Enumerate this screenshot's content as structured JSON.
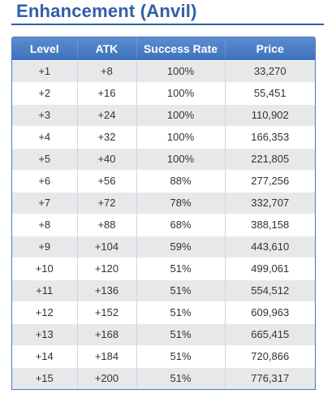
{
  "title": "Enhancement (Anvil)",
  "table": {
    "headers": [
      "Level",
      "ATK",
      "Success Rate",
      "Price"
    ],
    "rows": [
      [
        "+1",
        "+8",
        "100%",
        "33,270"
      ],
      [
        "+2",
        "+16",
        "100%",
        "55,451"
      ],
      [
        "+3",
        "+24",
        "100%",
        "110,902"
      ],
      [
        "+4",
        "+32",
        "100%",
        "166,353"
      ],
      [
        "+5",
        "+40",
        "100%",
        "221,805"
      ],
      [
        "+6",
        "+56",
        "88%",
        "277,256"
      ],
      [
        "+7",
        "+72",
        "78%",
        "332,707"
      ],
      [
        "+8",
        "+88",
        "68%",
        "388,158"
      ],
      [
        "+9",
        "+104",
        "59%",
        "443,610"
      ],
      [
        "+10",
        "+120",
        "51%",
        "499,061"
      ],
      [
        "+11",
        "+136",
        "51%",
        "554,512"
      ],
      [
        "+12",
        "+152",
        "51%",
        "609,963"
      ],
      [
        "+13",
        "+168",
        "51%",
        "665,415"
      ],
      [
        "+14",
        "+184",
        "51%",
        "720,866"
      ],
      [
        "+15",
        "+200",
        "51%",
        "776,317"
      ]
    ]
  },
  "colors": {
    "title": "#2f5fa7",
    "header_bg": "#4a7cc4",
    "row_alt": "#e7e8ea"
  }
}
